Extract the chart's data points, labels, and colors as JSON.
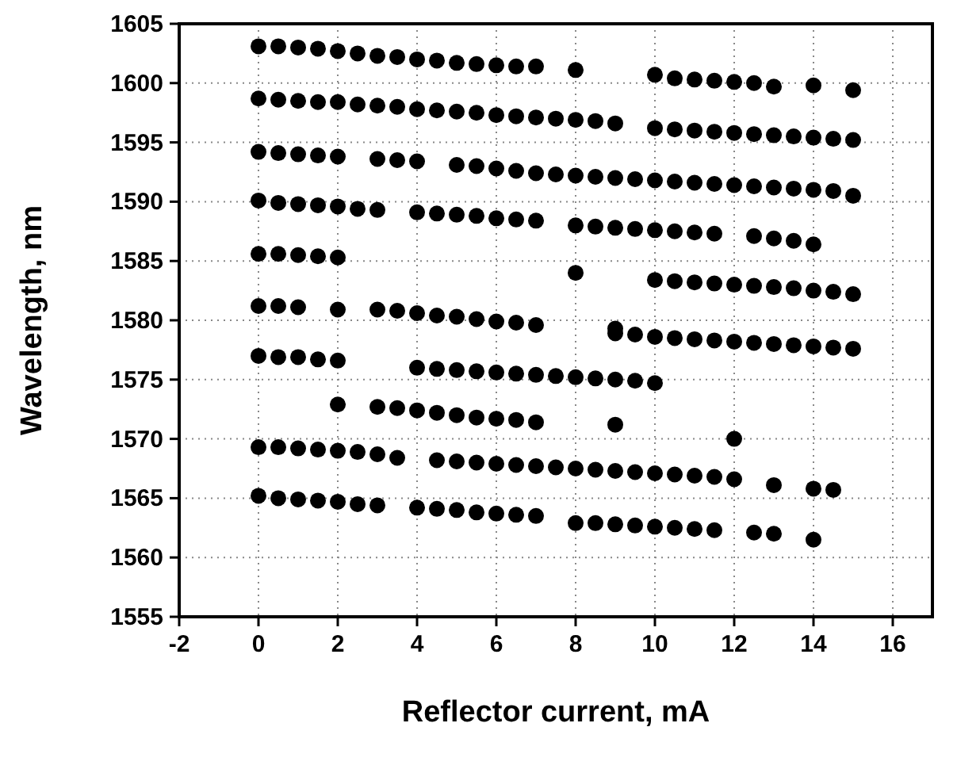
{
  "chart_data": {
    "type": "scatter",
    "xlabel": "Reflector current, mA",
    "ylabel": "Wavelength, nm",
    "xlim": [
      -2,
      17
    ],
    "xticks": [
      -2,
      0,
      2,
      4,
      6,
      8,
      10,
      12,
      14,
      16
    ],
    "ylim": [
      1555,
      1605
    ],
    "yticks": [
      1555,
      1560,
      1565,
      1570,
      1575,
      1580,
      1585,
      1590,
      1595,
      1600,
      1605
    ],
    "grid": true,
    "marker": "circle",
    "series": [
      {
        "color": "#000000",
        "x": [
          0,
          0.5,
          1,
          1.5,
          2,
          2.5,
          3,
          3.5,
          4,
          4.5,
          5,
          5.5,
          6,
          6.5,
          7,
          8,
          10,
          10.5,
          11,
          11.5,
          12,
          12.5,
          13,
          14,
          15,
          0,
          0.5,
          1,
          1.5,
          2,
          2.5,
          3,
          3.5,
          4,
          4.5,
          5,
          5.5,
          6,
          6.5,
          7,
          7.5,
          8,
          8.5,
          9,
          10,
          10.5,
          11,
          11.5,
          12,
          12.5,
          13,
          13.5,
          14,
          14.5,
          15,
          0,
          0.5,
          1,
          1.5,
          2,
          3,
          3.5,
          4,
          5,
          5.5,
          6,
          6.5,
          7,
          7.5,
          8,
          8.5,
          9,
          9.5,
          10,
          10.5,
          11,
          11.5,
          12,
          12.5,
          13,
          13.5,
          14,
          14.5,
          15,
          0,
          0.5,
          1,
          1.5,
          2,
          2.5,
          3,
          4,
          4.5,
          5,
          5.5,
          6,
          6.5,
          7,
          8,
          8.5,
          9,
          9.5,
          10,
          10.5,
          11,
          11.5,
          12.5,
          13,
          13.5,
          14,
          0,
          0.5,
          1,
          1.5,
          2,
          8,
          10,
          10.5,
          11,
          11.5,
          12,
          12.5,
          13,
          13.5,
          14,
          14.5,
          15,
          0,
          0.5,
          1,
          2,
          3,
          3.5,
          4,
          4.5,
          5,
          5.5,
          6,
          6.5,
          7,
          9,
          9,
          9.5,
          10,
          10.5,
          11,
          11.5,
          12,
          12.5,
          13,
          13.5,
          14,
          14.5,
          15,
          0,
          0.5,
          1,
          1.5,
          2,
          4,
          4.5,
          5,
          5.5,
          6,
          6.5,
          7,
          7.5,
          8,
          8.5,
          9,
          9.5,
          10,
          2,
          3,
          3.5,
          4,
          4.5,
          5,
          5.5,
          6,
          6.5,
          7,
          9,
          12,
          0,
          0.5,
          1,
          1.5,
          2,
          2.5,
          3,
          3.5,
          4.5,
          5,
          5.5,
          6,
          6.5,
          7,
          7.5,
          8,
          8.5,
          9,
          9.5,
          10,
          10.5,
          11,
          11.5,
          12,
          13,
          14,
          14.5,
          0,
          0.5,
          1,
          1.5,
          2,
          2.5,
          3,
          4,
          4.5,
          5,
          5.5,
          6,
          6.5,
          7,
          8,
          8.5,
          9,
          9.5,
          10,
          10.5,
          11,
          11.5,
          12.5,
          13,
          14
        ],
        "values": [
          1603.1,
          1603.1,
          1603.0,
          1602.9,
          1602.7,
          1602.5,
          1602.3,
          1602.2,
          1602.0,
          1601.9,
          1601.7,
          1601.6,
          1601.5,
          1601.4,
          1601.4,
          1601.1,
          1600.7,
          1600.4,
          1600.3,
          1600.2,
          1600.1,
          1600.0,
          1599.7,
          1599.8,
          1599.4,
          1598.7,
          1598.6,
          1598.5,
          1598.4,
          1598.4,
          1598.2,
          1598.1,
          1598.0,
          1597.8,
          1597.7,
          1597.6,
          1597.5,
          1597.3,
          1597.2,
          1597.1,
          1597.0,
          1596.9,
          1596.8,
          1596.6,
          1596.2,
          1596.1,
          1596.0,
          1595.9,
          1595.8,
          1595.7,
          1595.6,
          1595.5,
          1595.4,
          1595.3,
          1595.2,
          1594.2,
          1594.1,
          1594.0,
          1593.9,
          1593.8,
          1593.6,
          1593.5,
          1593.4,
          1593.1,
          1593.0,
          1592.8,
          1592.6,
          1592.4,
          1592.3,
          1592.2,
          1592.1,
          1592.0,
          1591.9,
          1591.8,
          1591.7,
          1591.6,
          1591.5,
          1591.4,
          1591.3,
          1591.2,
          1591.1,
          1591.0,
          1590.9,
          1590.5,
          1590.1,
          1589.9,
          1589.8,
          1589.7,
          1589.6,
          1589.4,
          1589.3,
          1589.1,
          1589.0,
          1588.9,
          1588.8,
          1588.6,
          1588.5,
          1588.4,
          1588.0,
          1587.9,
          1587.8,
          1587.7,
          1587.6,
          1587.5,
          1587.4,
          1587.3,
          1587.1,
          1586.9,
          1586.7,
          1586.4,
          1585.6,
          1585.6,
          1585.5,
          1585.4,
          1585.3,
          1584.0,
          1583.4,
          1583.3,
          1583.2,
          1583.1,
          1583.0,
          1582.9,
          1582.8,
          1582.7,
          1582.5,
          1582.4,
          1582.2,
          1581.2,
          1581.2,
          1581.1,
          1580.9,
          1580.9,
          1580.8,
          1580.6,
          1580.4,
          1580.3,
          1580.1,
          1579.9,
          1579.8,
          1579.6,
          1579.3,
          1578.9,
          1578.8,
          1578.6,
          1578.5,
          1578.4,
          1578.3,
          1578.2,
          1578.1,
          1578.0,
          1577.9,
          1577.8,
          1577.7,
          1577.6,
          1577.0,
          1576.9,
          1576.9,
          1576.7,
          1576.6,
          1576.0,
          1575.9,
          1575.8,
          1575.7,
          1575.6,
          1575.5,
          1575.4,
          1575.3,
          1575.2,
          1575.1,
          1575.0,
          1574.9,
          1574.7,
          1572.9,
          1572.7,
          1572.6,
          1572.4,
          1572.2,
          1572.0,
          1571.8,
          1571.7,
          1571.6,
          1571.4,
          1571.2,
          1570.0,
          1569.3,
          1569.3,
          1569.2,
          1569.1,
          1569.0,
          1568.9,
          1568.7,
          1568.4,
          1568.2,
          1568.1,
          1568.0,
          1567.9,
          1567.8,
          1567.7,
          1567.6,
          1567.5,
          1567.4,
          1567.3,
          1567.2,
          1567.1,
          1567.0,
          1566.9,
          1566.8,
          1566.6,
          1566.1,
          1565.8,
          1565.7,
          1565.2,
          1565.0,
          1564.9,
          1564.8,
          1564.7,
          1564.5,
          1564.4,
          1564.2,
          1564.1,
          1564.0,
          1563.8,
          1563.7,
          1563.6,
          1563.5,
          1562.9,
          1562.9,
          1562.8,
          1562.7,
          1562.6,
          1562.5,
          1562.4,
          1562.3,
          1562.1,
          1562.0,
          1561.5
        ]
      }
    ]
  }
}
